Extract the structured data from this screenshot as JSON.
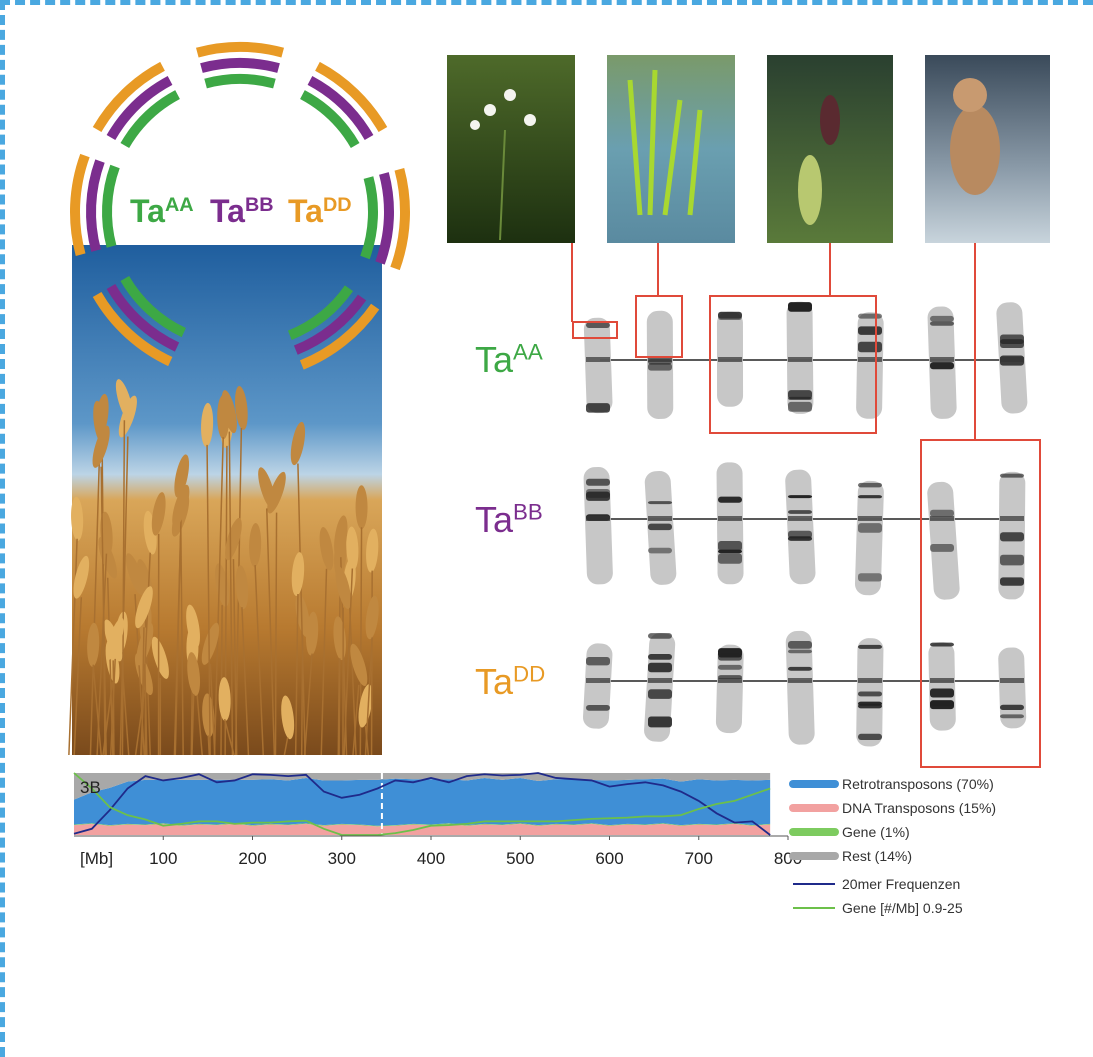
{
  "genomes": [
    {
      "name": "Ta",
      "sub": "AA",
      "color": "#3da845"
    },
    {
      "name": "Ta",
      "sub": "BB",
      "color": "#7b2d8e"
    },
    {
      "name": "Ta",
      "sub": "DD",
      "color": "#e89a25"
    }
  ],
  "chart_data": {
    "type": "area",
    "label": "3B",
    "xlabel": "[Mb]",
    "xlim": [
      0,
      800
    ],
    "xticks": [
      100,
      200,
      300,
      400,
      500,
      600,
      700,
      800
    ],
    "ylim": [
      0,
      100
    ],
    "x": [
      0,
      20,
      40,
      60,
      80,
      100,
      120,
      140,
      160,
      180,
      200,
      220,
      240,
      260,
      280,
      300,
      320,
      340,
      360,
      380,
      400,
      420,
      440,
      460,
      480,
      500,
      520,
      540,
      560,
      580,
      600,
      620,
      640,
      660,
      680,
      700,
      720,
      740,
      760,
      780
    ],
    "series": [
      {
        "name": "DNA Transposons (15%)",
        "color": "#f2a1a0",
        "values": [
          16,
          18,
          15,
          17,
          16,
          18,
          15,
          17,
          16,
          18,
          15,
          17,
          16,
          18,
          15,
          17,
          16,
          14,
          15,
          17,
          16,
          18,
          15,
          17,
          16,
          18,
          15,
          17,
          16,
          18,
          15,
          17,
          16,
          18,
          15,
          17,
          16,
          18,
          15,
          17
        ]
      },
      {
        "name": "Gene (1%)",
        "color": "#7dcb5f",
        "values": [
          1,
          1,
          1,
          1,
          1,
          1,
          1,
          1,
          1,
          1,
          1,
          1,
          1,
          1,
          1,
          1,
          1,
          1,
          1,
          1,
          1,
          1,
          1,
          1,
          1,
          1,
          1,
          1,
          1,
          1,
          1,
          1,
          1,
          1,
          1,
          1,
          1,
          1,
          1,
          1
        ]
      },
      {
        "name": "Retrotransposons (70%)",
        "color": "#3f8fd6",
        "values": [
          40,
          50,
          60,
          68,
          72,
          70,
          73,
          71,
          72,
          70,
          73,
          72,
          71,
          73,
          72,
          70,
          72,
          74,
          75,
          72,
          73,
          71,
          72,
          74,
          72,
          73,
          71,
          72,
          73,
          70,
          72,
          71,
          73,
          72,
          70,
          72,
          71,
          70,
          72,
          71
        ]
      },
      {
        "name": "Rest (14%)",
        "color": "#a8a8a8",
        "values": [
          43,
          31,
          24,
          14,
          11,
          11,
          11,
          11,
          11,
          11,
          11,
          10,
          12,
          8,
          12,
          12,
          11,
          11,
          9,
          10,
          10,
          10,
          12,
          8,
          11,
          8,
          13,
          10,
          10,
          11,
          12,
          11,
          10,
          9,
          14,
          10,
          12,
          11,
          12,
          11
        ]
      }
    ],
    "lines": [
      {
        "name": "20mer Frequenzen",
        "color": "#1f2a8a",
        "values": [
          2,
          10,
          40,
          75,
          95,
          88,
          92,
          98,
          85,
          88,
          98,
          97,
          95,
          97,
          70,
          60,
          65,
          75,
          88,
          85,
          92,
          85,
          95,
          98,
          96,
          97,
          100,
          92,
          90,
          88,
          78,
          82,
          85,
          80,
          70,
          55,
          35,
          20,
          22,
          0
        ]
      },
      {
        "name": "Gene [#/Mb] 0.9-25",
        "color": "#6cc04a",
        "values": [
          100,
          75,
          45,
          32,
          25,
          15,
          18,
          22,
          22,
          18,
          20,
          20,
          22,
          23,
          10,
          0,
          0,
          0,
          3,
          8,
          15,
          16,
          18,
          22,
          22,
          22,
          22,
          22,
          24,
          26,
          27,
          28,
          30,
          30,
          32,
          42,
          50,
          55,
          65,
          75
        ]
      }
    ]
  }
}
